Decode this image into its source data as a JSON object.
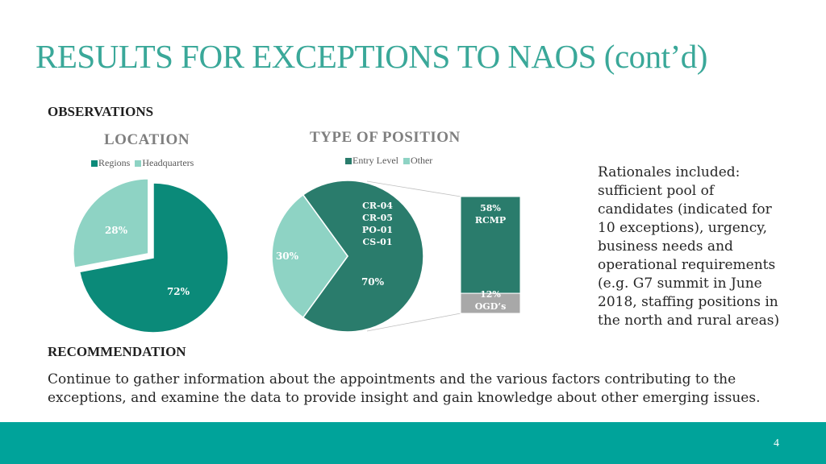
{
  "slide": {
    "title": "RESULTS FOR EXCEPTIONS TO NAOS (cont’d)",
    "observations_heading": "OBSERVATIONS",
    "recommendation_heading": "RECOMMENDATION",
    "recommendation_text": "Continue to gather information about the appointments and the various factors contributing to the exceptions, and examine the data to provide insight and gain knowledge about other emerging issues.",
    "rationale_text": "Rationales included: sufficient pool of candidates (indicated for 10 exceptions), urgency, business needs and operational requirements (e.g. G7 summit in June 2018, staffing positions in the north and rural areas)",
    "page_number": "4"
  },
  "colors": {
    "title": "#3aa899",
    "dark_teal": "#0b8a79",
    "light_teal": "#8ed3c4",
    "position_dark": "#2a7c6c",
    "gray": "#a8a8a8",
    "footer": "#00a39a"
  },
  "chart_data": [
    {
      "type": "pie",
      "title": "LOCATION",
      "categories": [
        "Regions",
        "Headquarters"
      ],
      "values": [
        72,
        28
      ],
      "labels": [
        "72%",
        "28%"
      ],
      "legend": "top",
      "exploded": "Headquarters"
    },
    {
      "type": "pie",
      "title": "TYPE OF POSITION",
      "categories": [
        "Entry Level",
        "Other"
      ],
      "values": [
        70,
        30
      ],
      "labels": [
        "70%",
        "30%"
      ],
      "entry_level_groups": [
        "CR-04",
        "CR-05",
        "PO-01",
        "CS-01"
      ],
      "legend": "top",
      "breakdown": {
        "type": "stacked_bar",
        "of": "Entry Level",
        "segments": [
          {
            "label": "RCMP",
            "value": 58,
            "text": "58%"
          },
          {
            "label": "OGD’s",
            "value": 12,
            "text": "12%"
          }
        ]
      }
    }
  ]
}
